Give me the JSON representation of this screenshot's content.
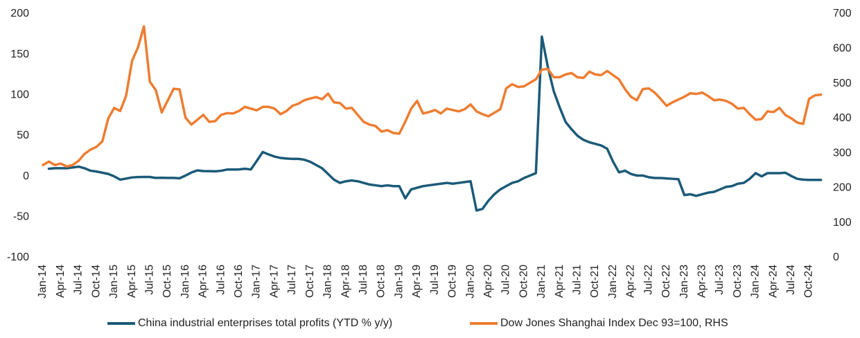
{
  "chart_data": {
    "type": "line",
    "categories": [
      "Jan-14",
      null,
      null,
      "Apr-14",
      null,
      null,
      "Jul-14",
      null,
      null,
      "Oct-14",
      null,
      null,
      "Jan-15",
      null,
      null,
      "Apr-15",
      null,
      null,
      "Jul-15",
      null,
      null,
      "Oct-15",
      null,
      null,
      "Jan-16",
      null,
      null,
      "Apr-16",
      null,
      null,
      "Jul-16",
      null,
      null,
      "Oct-16",
      null,
      null,
      "Jan-17",
      null,
      null,
      "Apr-17",
      null,
      null,
      "Jul-17",
      null,
      null,
      "Oct-17",
      null,
      null,
      "Jan-18",
      null,
      null,
      "Apr-18",
      null,
      null,
      "Jul-18",
      null,
      null,
      "Oct-18",
      null,
      null,
      "Jan-19",
      null,
      null,
      "Apr-19",
      null,
      null,
      "Jul-19",
      null,
      null,
      "Oct-19",
      null,
      null,
      "Jan-20",
      null,
      null,
      "Apr-20",
      null,
      null,
      "Jul-20",
      null,
      null,
      "Oct-20",
      null,
      null,
      "Jan-21",
      null,
      null,
      "Apr-21",
      null,
      null,
      "Jul-21",
      null,
      null,
      "Oct-21",
      null,
      null,
      "Jan-22",
      null,
      null,
      "Apr-22",
      null,
      null,
      "Jul-22",
      null,
      null,
      "Oct-22",
      null,
      null,
      "Jan-23",
      null,
      null,
      "Apr-23",
      null,
      null,
      "Jul-23",
      null,
      null,
      "Oct-23",
      null,
      null,
      "Jan-24",
      null,
      null,
      "Apr-24",
      null,
      null,
      "Jul-24",
      null,
      null,
      "Oct-24",
      null,
      null
    ],
    "series": [
      {
        "name": "China industrial enterprises total profits (YTD % y/y)",
        "color": "#1b5a78",
        "axis": "y",
        "values": [
          null,
          9.4,
          10,
          10,
          10,
          11,
          12,
          10,
          7,
          6,
          4.5,
          3,
          0,
          -4,
          -2.7,
          -1.3,
          -0.8,
          -0.7,
          -0.7,
          -1.9,
          -1.7,
          -1.9,
          -1.9,
          -2.3,
          1,
          4.8,
          7.4,
          6.5,
          6.4,
          6.2,
          6.9,
          8.4,
          8.4,
          8.6,
          9.4,
          8.5,
          19,
          30,
          27,
          24.4,
          22.7,
          22,
          21.6,
          21.6,
          20.5,
          18,
          14,
          10,
          3,
          -4,
          -8,
          -6,
          -5,
          -6,
          -8,
          -10,
          -11,
          -12,
          -11,
          -12,
          -12,
          -27,
          -16,
          -14,
          -12,
          -11,
          -10,
          -9,
          -8,
          -9,
          -8,
          -7,
          -6,
          -42,
          -40,
          -30,
          -22,
          -16,
          -12,
          -8,
          -6,
          -2,
          1,
          4,
          172,
          135,
          105,
          85,
          67,
          58,
          50,
          45,
          42,
          40,
          38,
          34,
          18,
          5,
          7,
          3,
          1,
          1,
          -1,
          -2,
          -2,
          -2.5,
          -3,
          -3.5,
          -23,
          -22,
          -24,
          -22,
          -20,
          -19,
          -16,
          -13,
          -12,
          -9,
          -8,
          -3,
          4,
          0,
          4,
          4,
          4,
          4.5,
          0.5,
          -3,
          -4,
          -4.3,
          -4.3,
          -4.3
        ]
      },
      {
        "name": "Dow Jones Shanghai Index Dec 93=100, RHS",
        "color": "#ed7d31",
        "axis": "y2",
        "values": [
          266,
          276,
          266,
          270,
          262,
          266,
          278,
          298,
          310,
          318,
          334,
          400,
          430,
          421,
          465,
          565,
          604,
          664,
          505,
          481,
          417,
          451,
          485,
          483,
          402,
          382,
          396,
          410,
          390,
          392,
          410,
          415,
          414,
          421,
          433,
          428,
          423,
          433,
          433,
          428,
          412,
          421,
          436,
          442,
          452,
          457,
          461,
          455,
          471,
          446,
          444,
          428,
          430,
          410,
          390,
          382,
          378,
          362,
          366,
          358,
          356,
          390,
          428,
          450,
          414,
          418,
          424,
          414,
          428,
          424,
          420,
          426,
          440,
          420,
          412,
          406,
          416,
          426,
          486,
          498,
          490,
          492,
          502,
          512,
          540,
          542,
          518,
          518,
          526,
          530,
          518,
          516,
          534,
          526,
          524,
          536,
          524,
          512,
          484,
          462,
          452,
          484,
          486,
          474,
          456,
          436,
          446,
          454,
          462,
          472,
          470,
          474,
          464,
          452,
          454,
          450,
          442,
          428,
          430,
          412,
          396,
          398,
          420,
          418,
          430,
          410,
          400,
          388,
          384,
          456,
          466,
          468
        ]
      }
    ],
    "ylim": [
      -100,
      200
    ],
    "yticks": [
      -100,
      -50,
      0,
      50,
      100,
      150,
      200
    ],
    "y2lim": [
      0,
      700
    ],
    "y2ticks": [
      0,
      100,
      200,
      300,
      400,
      500,
      600,
      700
    ],
    "grid": false
  }
}
